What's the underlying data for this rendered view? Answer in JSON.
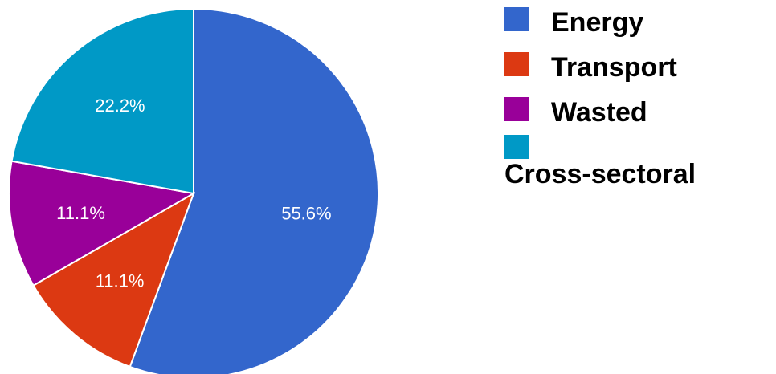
{
  "chart_data": {
    "type": "pie",
    "title": "",
    "categories": [
      "Energy",
      "Transport",
      "Wasted",
      "Cross-sectoral"
    ],
    "values": [
      55.6,
      11.1,
      11.1,
      22.2
    ],
    "value_labels": [
      "55.6%",
      "11.1%",
      "11.1%",
      "22.2%"
    ],
    "colors": [
      "#3366CC",
      "#DC3912",
      "#990099",
      "#0099C6"
    ],
    "start_angle_deg": 0,
    "direction": "clockwise",
    "legend_position": "right"
  }
}
